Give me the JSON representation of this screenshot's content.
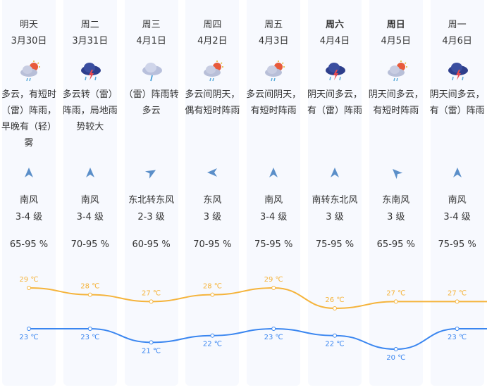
{
  "days": [
    {
      "day": "明天",
      "date": "3月30日",
      "icon": "partly-cloudy-rain-icon",
      "desc": "多云，有短时（雷）阵雨，早晚有（轻）雾",
      "wind_dir": "南风",
      "wind_level": "3-4 级",
      "humidity": "65-95 %",
      "high": "29 ℃",
      "low": "23 ℃",
      "bold": false,
      "arrow_deg": 0
    },
    {
      "day": "周二",
      "date": "3月31日",
      "icon": "thunderstorm-icon",
      "desc": "多云转（雷）阵雨，局地雨势较大",
      "wind_dir": "南风",
      "wind_level": "3-4 级",
      "humidity": "70-95 %",
      "high": "28 ℃",
      "low": "23 ℃",
      "bold": false,
      "arrow_deg": 0
    },
    {
      "day": "周三",
      "date": "4月1日",
      "icon": "shower-icon",
      "desc": "（雷）阵雨转多云",
      "wind_dir": "东北转东风",
      "wind_level": "2-3 级",
      "humidity": "60-95 %",
      "high": "27 ℃",
      "low": "21 ℃",
      "bold": false,
      "arrow_deg": 60
    },
    {
      "day": "周四",
      "date": "4月2日",
      "icon": "partly-cloudy-rain-icon",
      "desc": "多云间阴天，偶有短时阵雨",
      "wind_dir": "东风",
      "wind_level": "3 级",
      "humidity": "70-95 %",
      "high": "28 ℃",
      "low": "22 ℃",
      "bold": false,
      "arrow_deg": -90
    },
    {
      "day": "周五",
      "date": "4月3日",
      "icon": "partly-cloudy-rain-icon",
      "desc": "多云间阴天，有短时阵雨",
      "wind_dir": "南风",
      "wind_level": "3-4 级",
      "humidity": "75-95 %",
      "high": "29 ℃",
      "low": "23 ℃",
      "bold": false,
      "arrow_deg": 0
    },
    {
      "day": "周六",
      "date": "4月4日",
      "icon": "thunderstorm-icon",
      "desc": "阴天间多云，有（雷）阵雨",
      "wind_dir": "南转东北风",
      "wind_level": "3 级",
      "humidity": "75-95 %",
      "high": "26 ℃",
      "low": "22 ℃",
      "bold": true,
      "arrow_deg": 0
    },
    {
      "day": "周日",
      "date": "4月5日",
      "icon": "partly-cloudy-rain-icon",
      "desc": "阴天间多云，有短时阵雨",
      "wind_dir": "东南风",
      "wind_level": "3 级",
      "humidity": "65-95 %",
      "high": "27 ℃",
      "low": "20 ℃",
      "bold": true,
      "arrow_deg": -45
    },
    {
      "day": "周一",
      "date": "4月6日",
      "icon": "thunderstorm-icon",
      "desc": "阴天间多云，有（雷）阵雨",
      "wind_dir": "南风",
      "wind_level": "3-4 级",
      "humidity": "75-95 %",
      "high": "27 ℃",
      "low": "23 ℃",
      "bold": false,
      "arrow_deg": 0
    }
  ],
  "highs": [
    29,
    28,
    27,
    28,
    29,
    26,
    27,
    27
  ],
  "lows": [
    23,
    23,
    21,
    22,
    23,
    22,
    20,
    23
  ],
  "colors": {
    "high": "#f5b43c",
    "low": "#3a86f0",
    "arrow": "#5b8fc9",
    "column": "#f7f9fe"
  }
}
